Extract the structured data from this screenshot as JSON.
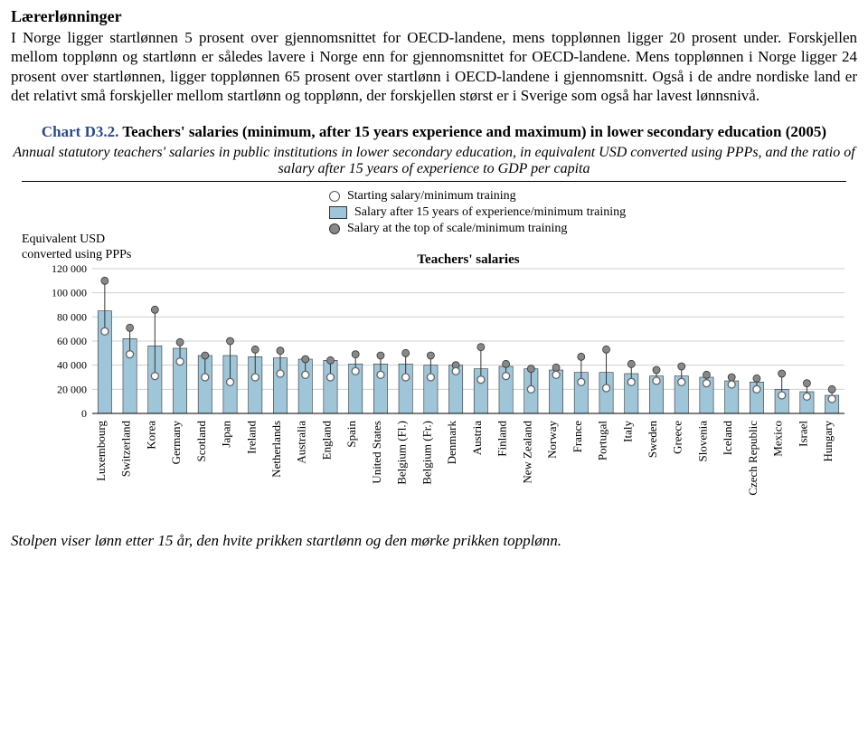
{
  "heading": "Lærerlønninger",
  "paragraph": "I Norge ligger startlønnen 5 prosent over gjennomsnittet for OECD-landene, mens topplønnen ligger 20 prosent under. Forskjellen mellom topplønn og startlønn er således lavere i Norge enn for gjennomsnittet for OECD-landene. Mens topplønnen i Norge ligger 24 prosent over startlønnen, ligger topplønnen 65 prosent over startlønn i OECD-landene i gjennomsnitt. Også i de andre nordiske land er det relativt små forskjeller mellom startlønn og topplønn, der forskjellen størst er i Sverige som også har lavest lønnsnivå.",
  "chart": {
    "label": "Chart D3.2.",
    "title": " Teachers' salaries (minimum, after 15 years experience and maximum) in lower secondary education (2005)",
    "subtitle": "Annual statutory teachers' salaries in public institutions in lower secondary education, in equivalent USD converted using PPPs, and the ratio of salary after 15 years of experience to GDP per capita",
    "axis_left_label_1": "Equivalent USD",
    "axis_left_label_2": "converted using PPPs",
    "section_title": "Teachers' salaries",
    "legend": [
      {
        "marker": "open",
        "label": "Starting salary/minimum training"
      },
      {
        "marker": "square",
        "label": "Salary after 15 years of experience/minimum training"
      },
      {
        "marker": "filled",
        "label": "Salary at the top of scale/minimum training"
      }
    ],
    "bar_fill": "#9fc5d8",
    "bar_stroke": "#333333",
    "marker_open_fill": "#ffffff",
    "marker_open_stroke": "#666666",
    "marker_filled_fill": "#888888",
    "marker_filled_stroke": "#333333",
    "grid_color": "#d0d0d0",
    "axis_color": "#000000",
    "background": "#ffffff",
    "ylim": [
      0,
      120000
    ],
    "yticks": [
      0,
      20000,
      40000,
      60000,
      80000,
      100000,
      120000
    ],
    "ytick_labels": [
      "0",
      "20 000",
      "40 000",
      "60 000",
      "80 000",
      "100 000",
      "120 000"
    ],
    "bar_width_ratio": 0.55,
    "categories": [
      "Luxembourg",
      "Switzerland",
      "Korea",
      "Germany",
      "Scotland",
      "Japan",
      "Ireland",
      "Netherlands",
      "Australia",
      "England",
      "Spain",
      "United States",
      "Belgium (Fl.)",
      "Belgium (Fr.)",
      "Denmark",
      "Austria",
      "Finland",
      "New Zealand",
      "Norway",
      "France",
      "Portugal",
      "Italy",
      "Sweden",
      "Greece",
      "Slovenia",
      "Iceland",
      "Czech Republic",
      "Mexico",
      "Israel",
      "Hungary"
    ],
    "series": {
      "start": [
        68000,
        49000,
        31000,
        43000,
        30000,
        26000,
        30000,
        33000,
        32000,
        30000,
        35000,
        32000,
        30000,
        30000,
        35000,
        28000,
        31000,
        20000,
        32000,
        26000,
        21000,
        26000,
        27000,
        26000,
        25000,
        24000,
        20000,
        15000,
        14000,
        12000
      ],
      "after15": [
        85000,
        62000,
        56000,
        54000,
        48000,
        48000,
        47000,
        46000,
        45000,
        44000,
        41000,
        41000,
        41000,
        40000,
        40000,
        37000,
        39000,
        37000,
        36000,
        34000,
        34000,
        33000,
        31000,
        31000,
        30000,
        27000,
        26000,
        20000,
        18000,
        15000
      ],
      "top": [
        110000,
        71000,
        86000,
        59000,
        48000,
        60000,
        53000,
        52000,
        45000,
        44000,
        49000,
        48000,
        50000,
        48000,
        40000,
        55000,
        41000,
        37000,
        38000,
        47000,
        53000,
        41000,
        36000,
        39000,
        32000,
        30000,
        29000,
        33000,
        25000,
        20000
      ]
    }
  },
  "caption": "Stolpen viser lønn etter 15 år, den hvite prikken startlønn og den mørke prikken topplønn."
}
